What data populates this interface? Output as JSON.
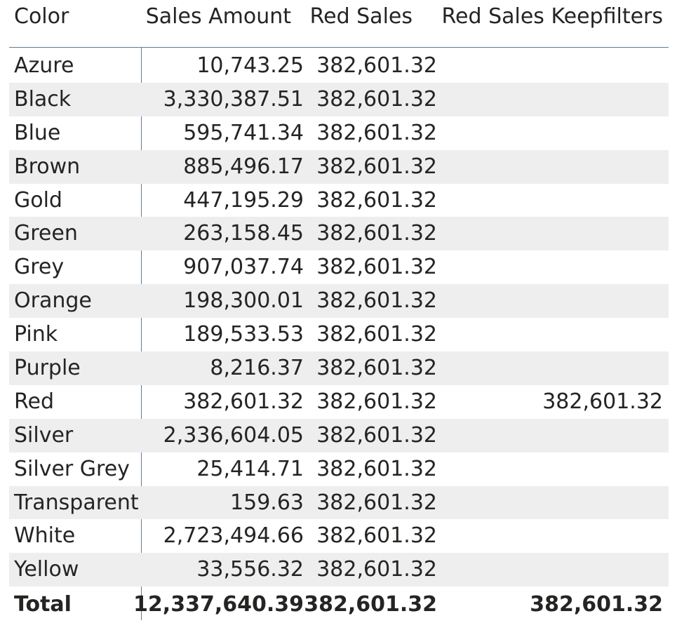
{
  "table": {
    "columns": [
      "Color",
      "Sales Amount",
      "Red Sales",
      "Red Sales Keepfilters"
    ],
    "rows": [
      [
        "Azure",
        "10,743.25",
        "382,601.32",
        ""
      ],
      [
        "Black",
        "3,330,387.51",
        "382,601.32",
        ""
      ],
      [
        "Blue",
        "595,741.34",
        "382,601.32",
        ""
      ],
      [
        "Brown",
        "885,496.17",
        "382,601.32",
        ""
      ],
      [
        "Gold",
        "447,195.29",
        "382,601.32",
        ""
      ],
      [
        "Green",
        "263,158.45",
        "382,601.32",
        ""
      ],
      [
        "Grey",
        "907,037.74",
        "382,601.32",
        ""
      ],
      [
        "Orange",
        "198,300.01",
        "382,601.32",
        ""
      ],
      [
        "Pink",
        "189,533.53",
        "382,601.32",
        ""
      ],
      [
        "Purple",
        "8,216.37",
        "382,601.32",
        ""
      ],
      [
        "Red",
        "382,601.32",
        "382,601.32",
        "382,601.32"
      ],
      [
        "Silver",
        "2,336,604.05",
        "382,601.32",
        ""
      ],
      [
        "Silver Grey",
        "25,414.71",
        "382,601.32",
        ""
      ],
      [
        "Transparent",
        "159.63",
        "382,601.32",
        ""
      ],
      [
        "White",
        "2,723,494.66",
        "382,601.32",
        ""
      ],
      [
        "Yellow",
        "33,556.32",
        "382,601.32",
        ""
      ]
    ],
    "total": [
      "Total",
      "12,337,640.39",
      "382,601.32",
      "382,601.32"
    ]
  },
  "colors": {
    "accent": "#118dff",
    "row_band": "#eeeeee",
    "text": "#252423"
  }
}
